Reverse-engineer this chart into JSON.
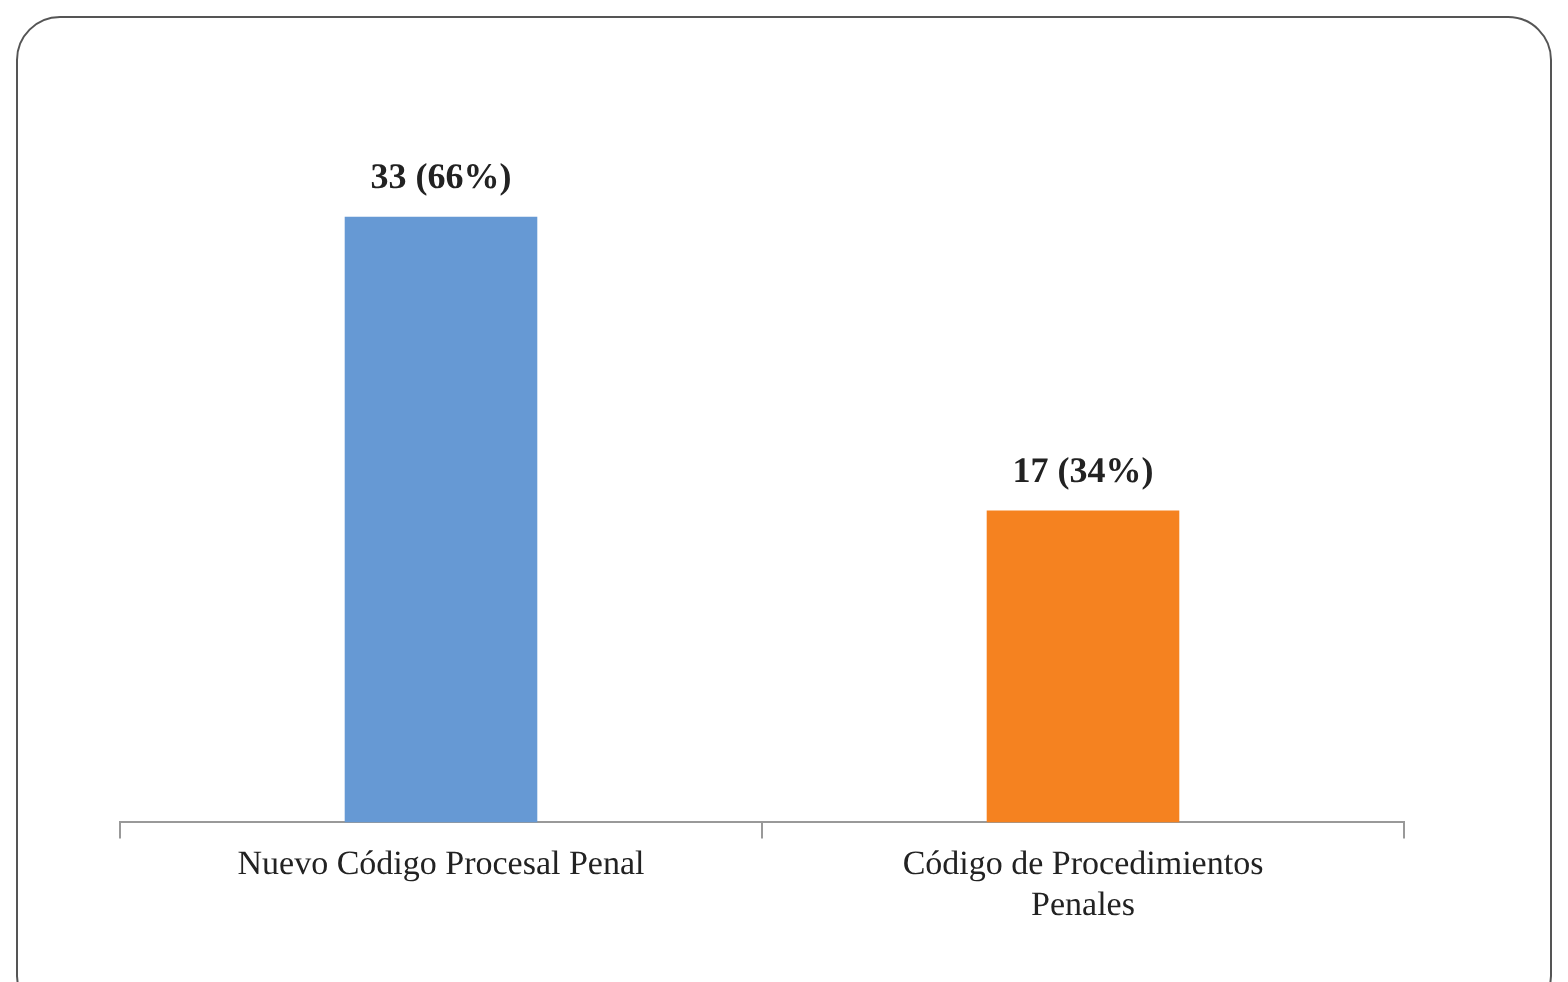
{
  "chart_data": {
    "type": "bar",
    "categories": [
      "Nuevo Código Procesal Penal",
      "Código de Procedimientos Penales"
    ],
    "values": [
      33,
      17
    ],
    "colors": [
      "#6699d4",
      "#f58220"
    ],
    "value_labels": [
      "33 (66%)",
      "17 (34%)"
    ],
    "tick_labels": "x",
    "grid": false,
    "legend": false
  }
}
